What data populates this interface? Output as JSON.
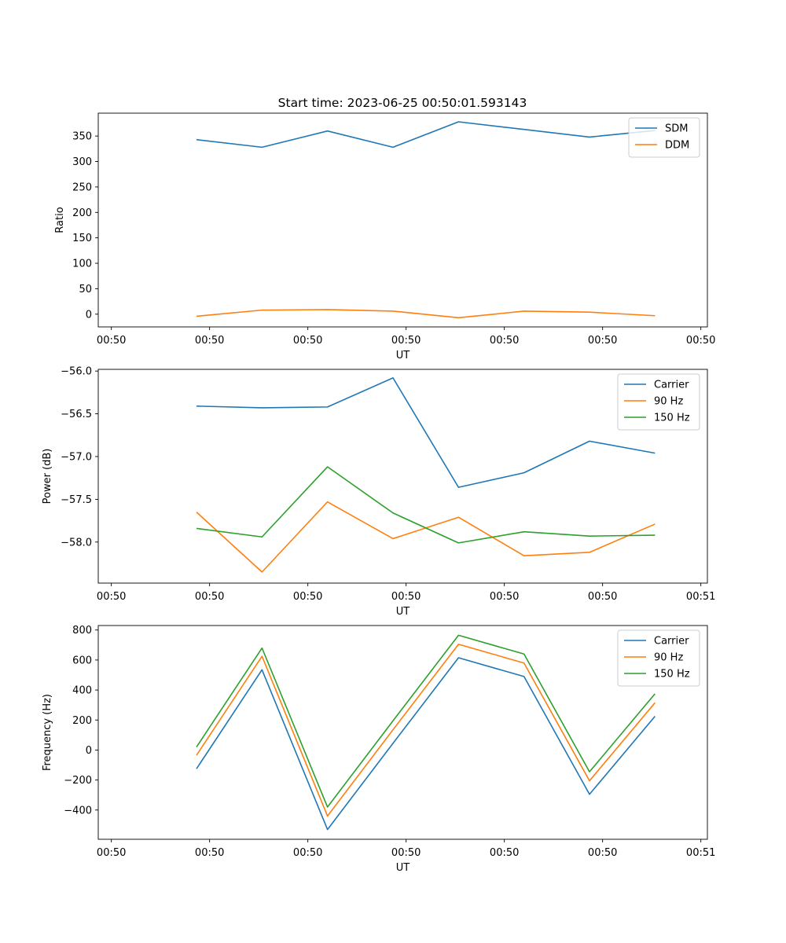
{
  "figure_title": "Start time: 2023-06-25 00:50:01.593143",
  "chart_data": [
    {
      "type": "line",
      "title": "Start time: 2023-06-25 00:50:01.593143",
      "xlabel": "UT",
      "ylabel": "Ratio",
      "x": [
        1,
        2,
        3,
        4,
        5,
        6,
        7,
        8
      ],
      "xlim": [
        -0.5,
        8.8
      ],
      "xticks": [
        -0.3,
        1.2,
        2.7,
        4.2,
        5.7,
        7.2,
        8.7
      ],
      "xtick_labels": [
        "00:50",
        "00:50",
        "00:50",
        "00:50",
        "00:50",
        "00:50",
        "00:50"
      ],
      "ylim": [
        -25,
        395
      ],
      "yticks": [
        0,
        50,
        100,
        150,
        200,
        250,
        300,
        350
      ],
      "ytick_labels": [
        "0",
        "50",
        "100",
        "150",
        "200",
        "250",
        "300",
        "350"
      ],
      "legend": "top-right",
      "series": [
        {
          "name": "SDM",
          "color": "#1f77b4",
          "values": [
            343,
            328,
            360,
            328,
            378,
            363,
            348,
            361
          ]
        },
        {
          "name": "DDM",
          "color": "#ff7f0e",
          "values": [
            -4,
            8,
            9,
            6,
            -7,
            6,
            4,
            -3
          ]
        }
      ]
    },
    {
      "type": "line",
      "title": "",
      "xlabel": "UT",
      "ylabel": "Power (dB)",
      "x": [
        1,
        2,
        3,
        4,
        5,
        6,
        7,
        8
      ],
      "xlim": [
        -0.5,
        8.8
      ],
      "xticks": [
        -0.3,
        1.2,
        2.7,
        4.2,
        5.7,
        7.2,
        8.7
      ],
      "xtick_labels": [
        "00:50",
        "00:50",
        "00:50",
        "00:50",
        "00:50",
        "00:50",
        "00:51"
      ],
      "ylim": [
        -58.48,
        -55.98
      ],
      "yticks": [
        -58.0,
        -57.5,
        -57.0,
        -56.5,
        -56.0
      ],
      "ytick_labels": [
        "−58.0",
        "−57.5",
        "−57.0",
        "−56.5",
        "−56.0"
      ],
      "legend": "top-right",
      "series": [
        {
          "name": "Carrier",
          "color": "#1f77b4",
          "values": [
            -56.41,
            -56.43,
            -56.42,
            -56.08,
            -57.36,
            -57.19,
            -56.82,
            -56.96
          ]
        },
        {
          "name": "90 Hz",
          "color": "#ff7f0e",
          "values": [
            -57.65,
            -58.35,
            -57.53,
            -57.96,
            -57.71,
            -58.16,
            -58.12,
            -57.79
          ]
        },
        {
          "name": "150 Hz",
          "color": "#2ca02c",
          "values": [
            -57.84,
            -57.94,
            -57.12,
            -57.66,
            -58.01,
            -57.88,
            -57.93,
            -57.92
          ]
        }
      ]
    },
    {
      "type": "line",
      "title": "",
      "xlabel": "UT",
      "ylabel": "Frequency (Hz)",
      "x": [
        1,
        2,
        3,
        4,
        5,
        6,
        7,
        8
      ],
      "xlim": [
        -0.5,
        8.8
      ],
      "xticks": [
        -0.3,
        1.2,
        2.7,
        4.2,
        5.7,
        7.2,
        8.7
      ],
      "xtick_labels": [
        "00:50",
        "00:50",
        "00:50",
        "00:50",
        "00:50",
        "00:50",
        "00:51"
      ],
      "ylim": [
        -595,
        830
      ],
      "yticks": [
        -400,
        -200,
        0,
        200,
        400,
        600,
        800
      ],
      "ytick_labels": [
        "−400",
        "−200",
        "0",
        "200",
        "400",
        "600",
        "800"
      ],
      "legend": "top-right",
      "series": [
        {
          "name": "Carrier",
          "color": "#1f77b4",
          "values": [
            -125,
            535,
            -530,
            45,
            615,
            490,
            -295,
            225
          ]
        },
        {
          "name": "90 Hz",
          "color": "#ff7f0e",
          "values": [
            -35,
            625,
            -440,
            135,
            705,
            580,
            -205,
            315
          ]
        },
        {
          "name": "150 Hz",
          "color": "#2ca02c",
          "values": [
            20,
            680,
            -380,
            195,
            765,
            640,
            -145,
            375
          ]
        }
      ]
    }
  ]
}
